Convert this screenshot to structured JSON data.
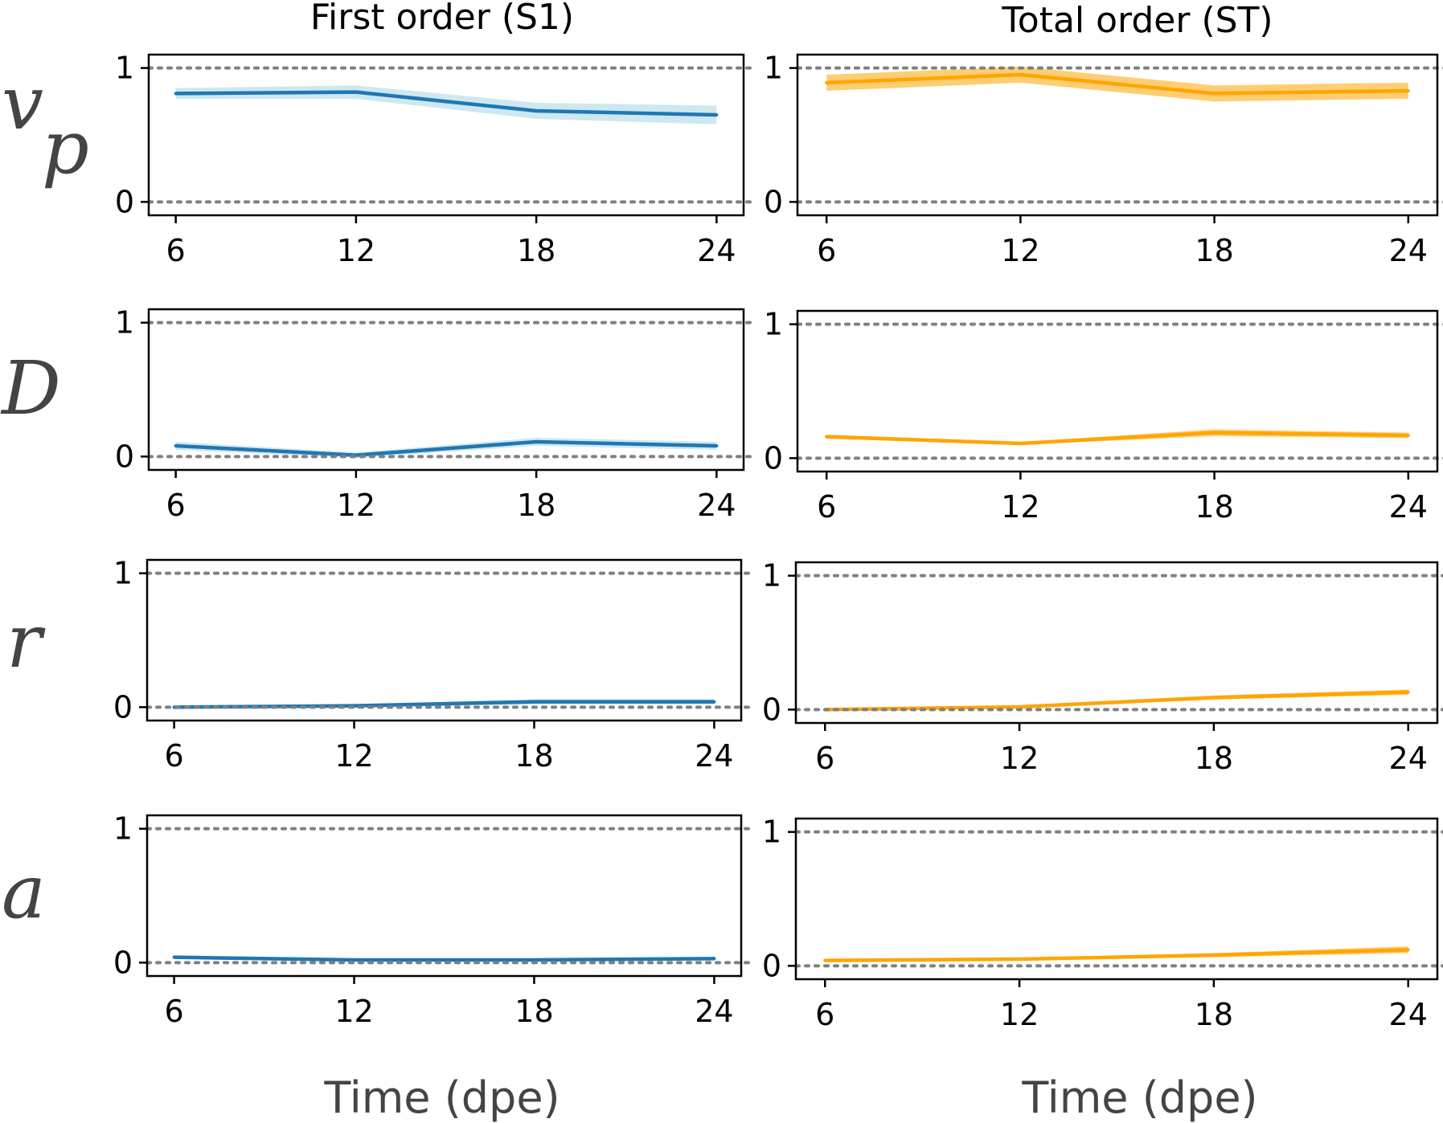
{
  "column_titles": [
    "First order (S1)",
    "Total order (ST)"
  ],
  "x_axis_label": "Time (dpe)",
  "row_labels": [
    {
      "base": "v",
      "sub": "p"
    },
    {
      "base": "D",
      "sub": ""
    },
    {
      "base": "r",
      "sub": ""
    },
    {
      "base": "a",
      "sub": ""
    }
  ],
  "colors": {
    "s1": "#1f77b4",
    "s1_band": "#add8e6",
    "st": "#ffa500",
    "st_band": "#ffa500",
    "refline": "#808080"
  },
  "chart_data": [
    {
      "type": "line",
      "row": "v_p",
      "index": "First order (S1)",
      "x": [
        6,
        12,
        18,
        24
      ],
      "y": [
        0.81,
        0.82,
        0.68,
        0.65
      ],
      "band_half_width": [
        0.04,
        0.05,
        0.06,
        0.07
      ],
      "xticks": [
        6,
        12,
        18,
        24
      ],
      "yticks": [
        0,
        1
      ],
      "xlim": [
        5.1,
        24.9
      ],
      "ylim": [
        -0.1,
        1.1
      ],
      "reference_lines": [
        0,
        1
      ]
    },
    {
      "type": "line",
      "row": "v_p",
      "index": "Total order (ST)",
      "x": [
        6,
        12,
        18,
        24
      ],
      "y": [
        0.89,
        0.95,
        0.81,
        0.83
      ],
      "band_half_width": [
        0.06,
        0.06,
        0.06,
        0.06
      ],
      "xticks": [
        6,
        12,
        18,
        24
      ],
      "yticks": [
        0,
        1
      ],
      "xlim": [
        5.1,
        24.9
      ],
      "ylim": [
        -0.1,
        1.1
      ],
      "reference_lines": [
        0,
        1
      ]
    },
    {
      "type": "line",
      "row": "D",
      "index": "First order (S1)",
      "x": [
        6,
        12,
        18,
        24
      ],
      "y": [
        0.08,
        0.01,
        0.11,
        0.08
      ],
      "band_half_width": [
        0.03,
        0.02,
        0.03,
        0.03
      ],
      "xticks": [
        6,
        12,
        18,
        24
      ],
      "yticks": [
        0,
        1
      ],
      "xlim": [
        5.1,
        24.9
      ],
      "ylim": [
        -0.1,
        1.1
      ],
      "reference_lines": [
        0,
        1
      ]
    },
    {
      "type": "line",
      "row": "D",
      "index": "Total order (ST)",
      "x": [
        6,
        12,
        18,
        24
      ],
      "y": [
        0.16,
        0.11,
        0.19,
        0.17
      ],
      "band_half_width": [
        0.015,
        0.01,
        0.025,
        0.02
      ],
      "xticks": [
        6,
        12,
        18,
        24
      ],
      "yticks": [
        0,
        1
      ],
      "xlim": [
        5.1,
        24.9
      ],
      "ylim": [
        -0.1,
        1.1
      ],
      "reference_lines": [
        0,
        1
      ]
    },
    {
      "type": "line",
      "row": "r",
      "index": "First order (S1)",
      "x": [
        6,
        12,
        18,
        24
      ],
      "y": [
        0.0,
        0.01,
        0.04,
        0.04
      ],
      "band_half_width": [
        0.01,
        0.01,
        0.02,
        0.02
      ],
      "xticks": [
        6,
        12,
        18,
        24
      ],
      "yticks": [
        0,
        1
      ],
      "xlim": [
        5.1,
        24.9
      ],
      "ylim": [
        -0.1,
        1.1
      ],
      "reference_lines": [
        0,
        1
      ]
    },
    {
      "type": "line",
      "row": "r",
      "index": "Total order (ST)",
      "x": [
        6,
        12,
        18,
        24
      ],
      "y": [
        0.0,
        0.02,
        0.09,
        0.13
      ],
      "band_half_width": [
        0.01,
        0.01,
        0.015,
        0.02
      ],
      "xticks": [
        6,
        12,
        18,
        24
      ],
      "yticks": [
        0,
        1
      ],
      "xlim": [
        5.1,
        24.9
      ],
      "ylim": [
        -0.1,
        1.1
      ],
      "reference_lines": [
        0,
        1
      ]
    },
    {
      "type": "line",
      "row": "a",
      "index": "First order (S1)",
      "x": [
        6,
        12,
        18,
        24
      ],
      "y": [
        0.04,
        0.02,
        0.02,
        0.03
      ],
      "band_half_width": [
        0.01,
        0.01,
        0.01,
        0.01
      ],
      "xticks": [
        6,
        12,
        18,
        24
      ],
      "yticks": [
        0,
        1
      ],
      "xlim": [
        5.1,
        24.9
      ],
      "ylim": [
        -0.1,
        1.1
      ],
      "reference_lines": [
        0,
        1
      ]
    },
    {
      "type": "line",
      "row": "a",
      "index": "Total order (ST)",
      "x": [
        6,
        12,
        18,
        24
      ],
      "y": [
        0.04,
        0.05,
        0.08,
        0.12
      ],
      "band_half_width": [
        0.01,
        0.01,
        0.015,
        0.025
      ],
      "xticks": [
        6,
        12,
        18,
        24
      ],
      "yticks": [
        0,
        1
      ],
      "xlim": [
        5.1,
        24.9
      ],
      "ylim": [
        -0.1,
        1.1
      ],
      "reference_lines": [
        0,
        1
      ]
    }
  ]
}
